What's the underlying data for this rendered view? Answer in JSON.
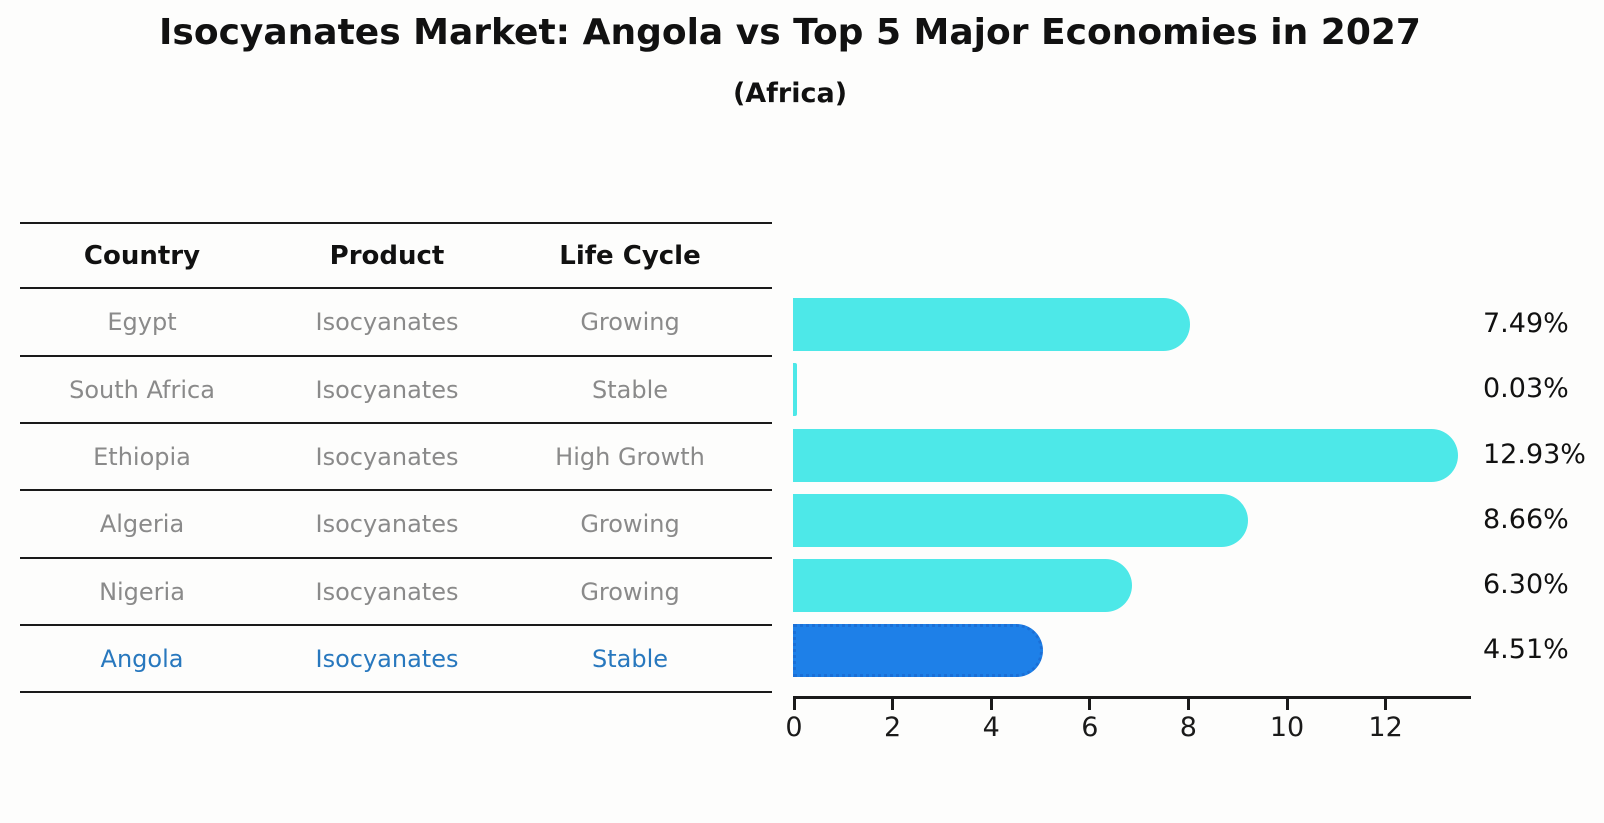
{
  "title": "Isocyanates Market: Angola vs Top 5 Major Economies in 2027",
  "subtitle": "(Africa)",
  "table": {
    "headers": [
      "Country",
      "Product",
      "Life Cycle"
    ],
    "rows": [
      {
        "country": "Egypt",
        "product": "Isocyanates",
        "life_cycle": "Growing"
      },
      {
        "country": "South Africa",
        "product": "Isocyanates",
        "life_cycle": "Stable"
      },
      {
        "country": "Ethiopia",
        "product": "Isocyanates",
        "life_cycle": "High Growth"
      },
      {
        "country": "Algeria",
        "product": "Isocyanates",
        "life_cycle": "Growing"
      },
      {
        "country": "Nigeria",
        "product": "Isocyanates",
        "life_cycle": "Growing"
      },
      {
        "country": "Angola",
        "product": "Isocyanates",
        "life_cycle": "Stable"
      }
    ],
    "highlight_row": "Angola"
  },
  "chart_data": {
    "type": "bar",
    "orientation": "horizontal",
    "title": "Isocyanates Market: Angola vs Top 5 Major Economies in 2027",
    "subtitle": "(Africa)",
    "categories": [
      "Egypt",
      "South Africa",
      "Ethiopia",
      "Algeria",
      "Nigeria",
      "Angola"
    ],
    "values": [
      7.49,
      0.03,
      12.93,
      8.66,
      6.3,
      4.51
    ],
    "value_labels": [
      "7.49%",
      "0.03%",
      "12.93%",
      "8.66%",
      "6.30%",
      "4.51%"
    ],
    "xlabel": "",
    "ylabel": "",
    "xlim": [
      0,
      13.7
    ],
    "xticks": [
      0,
      2,
      4,
      6,
      8,
      10,
      12
    ],
    "grid": false,
    "legend": false,
    "bar_color": "#4de8e8",
    "highlight_index": 5,
    "highlight_color": "#1e80e8",
    "highlight_border_color": "#1b6fd6",
    "highlight_text_color": "#2878be"
  }
}
